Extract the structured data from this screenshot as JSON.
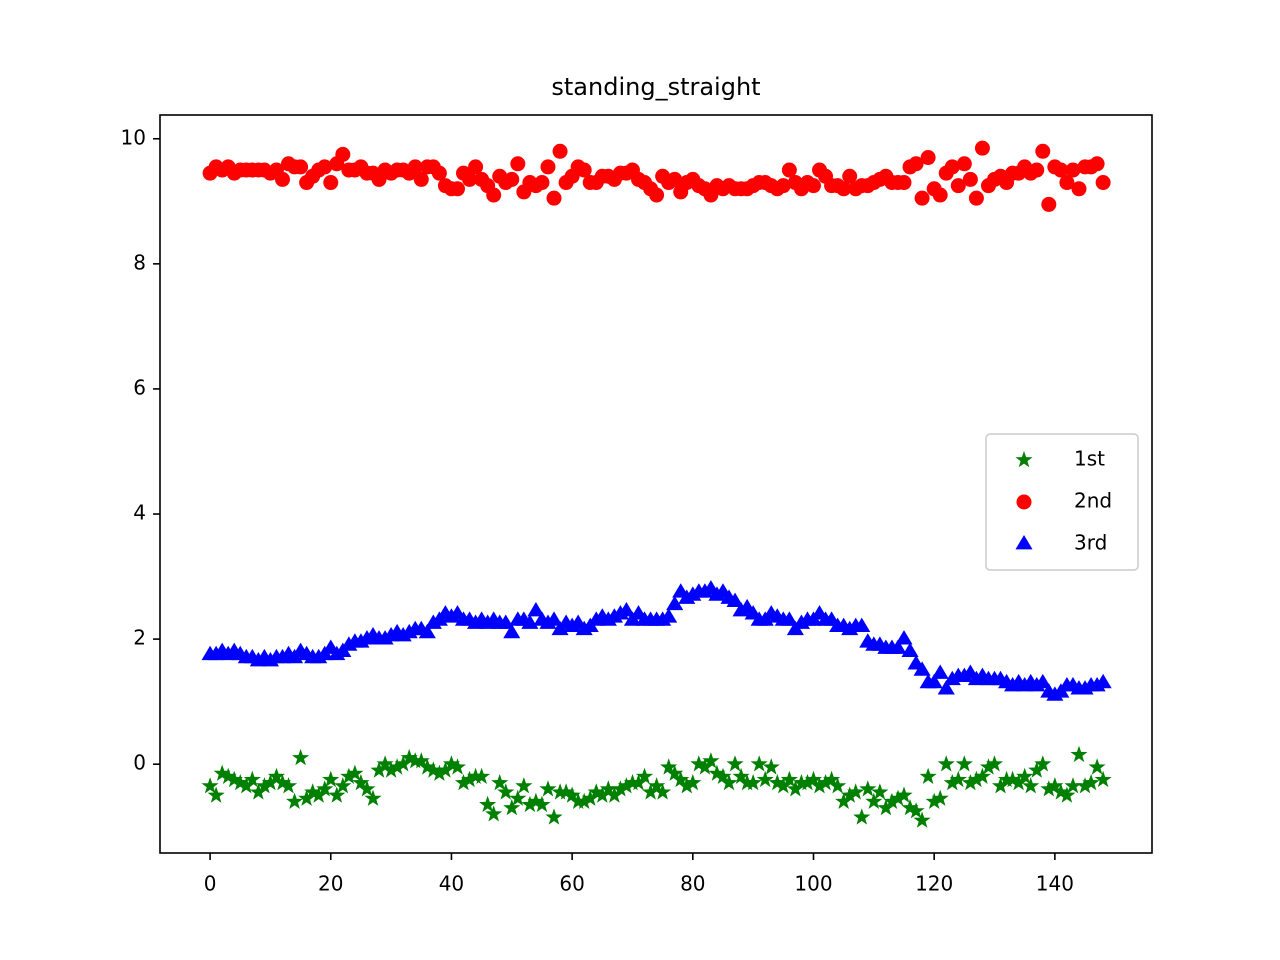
{
  "chart_data": {
    "type": "scatter",
    "title": "standing_straight",
    "x": [
      0,
      1,
      2,
      3,
      4,
      5,
      6,
      7,
      8,
      9,
      10,
      11,
      12,
      13,
      14,
      15,
      16,
      17,
      18,
      19,
      20,
      21,
      22,
      23,
      24,
      25,
      26,
      27,
      28,
      29,
      30,
      31,
      32,
      33,
      34,
      35,
      36,
      37,
      38,
      39,
      40,
      41,
      42,
      43,
      44,
      45,
      46,
      47,
      48,
      49,
      50,
      51,
      52,
      53,
      54,
      55,
      56,
      57,
      58,
      59,
      60,
      61,
      62,
      63,
      64,
      65,
      66,
      67,
      68,
      69,
      70,
      71,
      72,
      73,
      74,
      75,
      76,
      77,
      78,
      79,
      80,
      81,
      82,
      83,
      84,
      85,
      86,
      87,
      88,
      89,
      90,
      91,
      92,
      93,
      94,
      95,
      96,
      97,
      98,
      99,
      100,
      101,
      102,
      103,
      104,
      105,
      106,
      107,
      108,
      109,
      110,
      111,
      112,
      113,
      114,
      115,
      116,
      117,
      118,
      119,
      120,
      121,
      122,
      123,
      124,
      125,
      126,
      127,
      128,
      129,
      130,
      131,
      132,
      133,
      134,
      135,
      136,
      137,
      138,
      139,
      140,
      141,
      142,
      143,
      144,
      145,
      146,
      147,
      148
    ],
    "series": [
      {
        "name": "1st",
        "color": "green",
        "marker": "star",
        "values": [
          -0.35,
          -0.5,
          -0.15,
          -0.2,
          -0.25,
          -0.3,
          -0.35,
          -0.25,
          -0.45,
          -0.35,
          -0.3,
          -0.2,
          -0.3,
          -0.35,
          -0.6,
          0.1,
          -0.55,
          -0.45,
          -0.5,
          -0.4,
          -0.25,
          -0.5,
          -0.35,
          -0.2,
          -0.15,
          -0.3,
          -0.4,
          -0.55,
          -0.1,
          0.0,
          -0.1,
          -0.05,
          0.0,
          0.1,
          0.05,
          0.05,
          -0.05,
          -0.1,
          -0.15,
          -0.1,
          0.0,
          -0.05,
          -0.3,
          -0.25,
          -0.2,
          -0.2,
          -0.65,
          -0.8,
          -0.3,
          -0.45,
          -0.7,
          -0.55,
          -0.35,
          -0.65,
          -0.6,
          -0.65,
          -0.4,
          -0.85,
          -0.45,
          -0.45,
          -0.5,
          -0.6,
          -0.6,
          -0.55,
          -0.45,
          -0.5,
          -0.4,
          -0.5,
          -0.4,
          -0.35,
          -0.3,
          -0.3,
          -0.2,
          -0.45,
          -0.35,
          -0.45,
          -0.05,
          -0.15,
          -0.25,
          -0.35,
          -0.3,
          0.0,
          -0.05,
          0.05,
          -0.15,
          -0.2,
          -0.3,
          0.0,
          -0.2,
          -0.3,
          -0.3,
          0.0,
          -0.25,
          -0.05,
          -0.3,
          -0.35,
          -0.25,
          -0.4,
          -0.3,
          -0.3,
          -0.25,
          -0.35,
          -0.3,
          -0.25,
          -0.35,
          -0.6,
          -0.5,
          -0.45,
          -0.85,
          -0.4,
          -0.6,
          -0.45,
          -0.7,
          -0.6,
          -0.55,
          -0.5,
          -0.7,
          -0.75,
          -0.9,
          -0.2,
          -0.6,
          -0.55,
          0.0,
          -0.3,
          -0.25,
          0.0,
          -0.3,
          -0.25,
          -0.2,
          -0.05,
          0.0,
          -0.35,
          -0.25,
          -0.25,
          -0.3,
          -0.2,
          -0.35,
          -0.1,
          0.0,
          -0.4,
          -0.35,
          -0.45,
          -0.5,
          -0.35,
          0.15,
          -0.35,
          -0.3,
          -0.05,
          -0.25
        ]
      },
      {
        "name": "2nd",
        "color": "red",
        "marker": "circle",
        "values": [
          9.45,
          9.55,
          9.5,
          9.55,
          9.45,
          9.5,
          9.5,
          9.5,
          9.5,
          9.5,
          9.45,
          9.5,
          9.35,
          9.6,
          9.55,
          9.55,
          9.3,
          9.4,
          9.5,
          9.55,
          9.3,
          9.6,
          9.75,
          9.5,
          9.5,
          9.55,
          9.45,
          9.45,
          9.35,
          9.5,
          9.45,
          9.5,
          9.5,
          9.45,
          9.55,
          9.35,
          9.55,
          9.55,
          9.45,
          9.25,
          9.2,
          9.2,
          9.45,
          9.35,
          9.55,
          9.35,
          9.25,
          9.1,
          9.4,
          9.3,
          9.35,
          9.6,
          9.15,
          9.3,
          9.25,
          9.3,
          9.55,
          9.05,
          9.8,
          9.3,
          9.4,
          9.55,
          9.5,
          9.3,
          9.3,
          9.4,
          9.4,
          9.35,
          9.45,
          9.45,
          9.5,
          9.35,
          9.3,
          9.2,
          9.1,
          9.4,
          9.3,
          9.35,
          9.15,
          9.3,
          9.35,
          9.25,
          9.2,
          9.1,
          9.25,
          9.2,
          9.25,
          9.2,
          9.2,
          9.2,
          9.25,
          9.3,
          9.3,
          9.25,
          9.2,
          9.25,
          9.5,
          9.3,
          9.2,
          9.3,
          9.25,
          9.5,
          9.4,
          9.25,
          9.25,
          9.2,
          9.4,
          9.2,
          9.25,
          9.25,
          9.3,
          9.35,
          9.4,
          9.3,
          9.3,
          9.3,
          9.55,
          9.6,
          9.05,
          9.7,
          9.2,
          9.1,
          9.45,
          9.55,
          9.25,
          9.6,
          9.35,
          9.05,
          9.85,
          9.25,
          9.35,
          9.4,
          9.3,
          9.45,
          9.45,
          9.55,
          9.45,
          9.5,
          9.8,
          8.95,
          9.55,
          9.5,
          9.3,
          9.5,
          9.2,
          9.55,
          9.55,
          9.6,
          9.3
        ]
      },
      {
        "name": "3rd",
        "color": "blue",
        "marker": "triangle",
        "values": [
          1.75,
          1.75,
          1.8,
          1.75,
          1.8,
          1.75,
          1.7,
          1.7,
          1.65,
          1.7,
          1.65,
          1.7,
          1.7,
          1.75,
          1.7,
          1.8,
          1.75,
          1.7,
          1.7,
          1.75,
          1.85,
          1.75,
          1.8,
          1.9,
          1.95,
          1.95,
          2.0,
          2.05,
          2.0,
          2.0,
          2.05,
          2.1,
          2.05,
          2.1,
          2.15,
          2.15,
          2.1,
          2.25,
          2.3,
          2.4,
          2.35,
          2.4,
          2.3,
          2.3,
          2.25,
          2.3,
          2.25,
          2.3,
          2.25,
          2.25,
          2.1,
          2.3,
          2.3,
          2.25,
          2.45,
          2.3,
          2.25,
          2.3,
          2.15,
          2.25,
          2.2,
          2.25,
          2.15,
          2.2,
          2.3,
          2.35,
          2.3,
          2.35,
          2.4,
          2.45,
          2.3,
          2.4,
          2.3,
          2.3,
          2.3,
          2.3,
          2.35,
          2.55,
          2.75,
          2.65,
          2.7,
          2.75,
          2.75,
          2.8,
          2.7,
          2.75,
          2.65,
          2.6,
          2.45,
          2.5,
          2.4,
          2.3,
          2.3,
          2.4,
          2.35,
          2.3,
          2.3,
          2.15,
          2.25,
          2.3,
          2.3,
          2.4,
          2.3,
          2.3,
          2.2,
          2.2,
          2.15,
          2.2,
          2.2,
          1.95,
          1.9,
          1.9,
          1.85,
          1.85,
          1.85,
          2.0,
          1.8,
          1.6,
          1.5,
          1.3,
          1.3,
          1.45,
          1.2,
          1.35,
          1.4,
          1.4,
          1.45,
          1.35,
          1.4,
          1.35,
          1.35,
          1.35,
          1.3,
          1.25,
          1.3,
          1.25,
          1.3,
          1.25,
          1.3,
          1.15,
          1.1,
          1.15,
          1.25,
          1.25,
          1.2,
          1.2,
          1.25,
          1.25,
          1.3
        ]
      }
    ],
    "xlim": [
      -8.3,
      156.1
    ],
    "xticks": [
      0,
      20,
      40,
      60,
      80,
      100,
      120,
      140
    ],
    "ylim": [
      -1.42,
      10.38
    ],
    "yticks": [
      0,
      2,
      4,
      6,
      8,
      10
    ],
    "grid": false,
    "legend": "center right"
  }
}
